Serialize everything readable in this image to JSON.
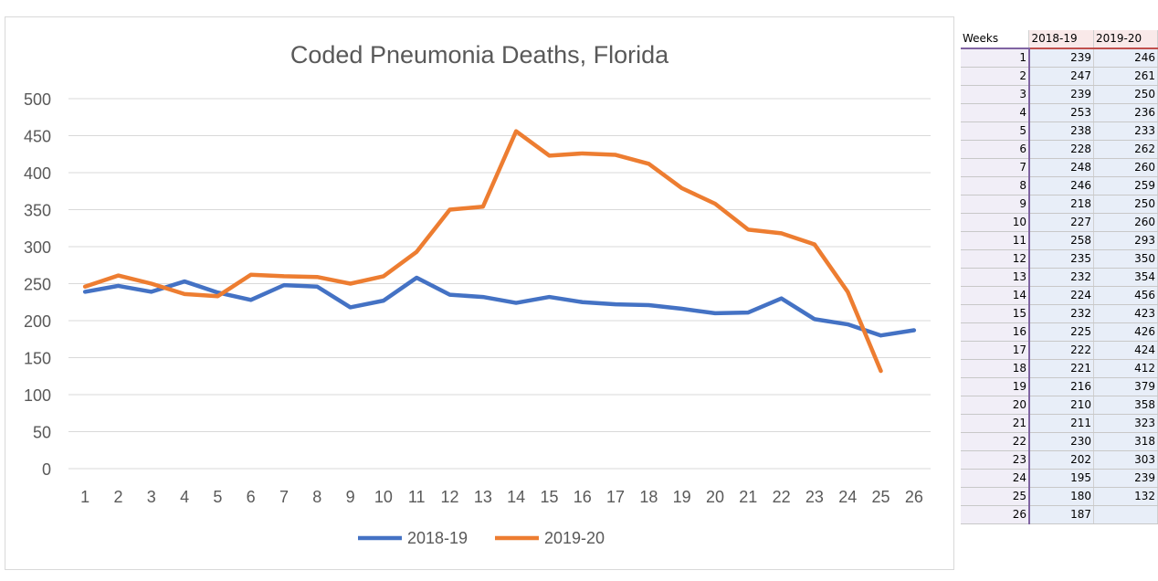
{
  "chart_data": {
    "type": "line",
    "title": "Coded Pneumonia Deaths, Florida",
    "categories": [
      "1",
      "2",
      "3",
      "4",
      "5",
      "6",
      "7",
      "8",
      "9",
      "10",
      "11",
      "12",
      "13",
      "14",
      "15",
      "16",
      "17",
      "18",
      "19",
      "20",
      "21",
      "22",
      "23",
      "24",
      "25",
      "26"
    ],
    "series": [
      {
        "name": "2018-19",
        "color": "#4472c4",
        "values": [
          239,
          247,
          239,
          253,
          238,
          228,
          248,
          246,
          218,
          227,
          258,
          235,
          232,
          224,
          232,
          225,
          222,
          221,
          216,
          210,
          211,
          230,
          202,
          195,
          180,
          187
        ]
      },
      {
        "name": "2019-20",
        "color": "#ed7d31",
        "values": [
          246,
          261,
          250,
          236,
          233,
          262,
          260,
          259,
          250,
          260,
          293,
          350,
          354,
          456,
          423,
          426,
          424,
          412,
          379,
          358,
          323,
          318,
          303,
          239,
          132,
          null
        ]
      }
    ],
    "ylim": [
      0,
      500
    ],
    "yticks": [
      "0",
      "50",
      "100",
      "150",
      "200",
      "250",
      "300",
      "350",
      "400",
      "450",
      "500"
    ],
    "grid": true,
    "legend": "bottom"
  },
  "sheet": {
    "headers": [
      "Weeks",
      "2018-19",
      "2019-20"
    ]
  }
}
